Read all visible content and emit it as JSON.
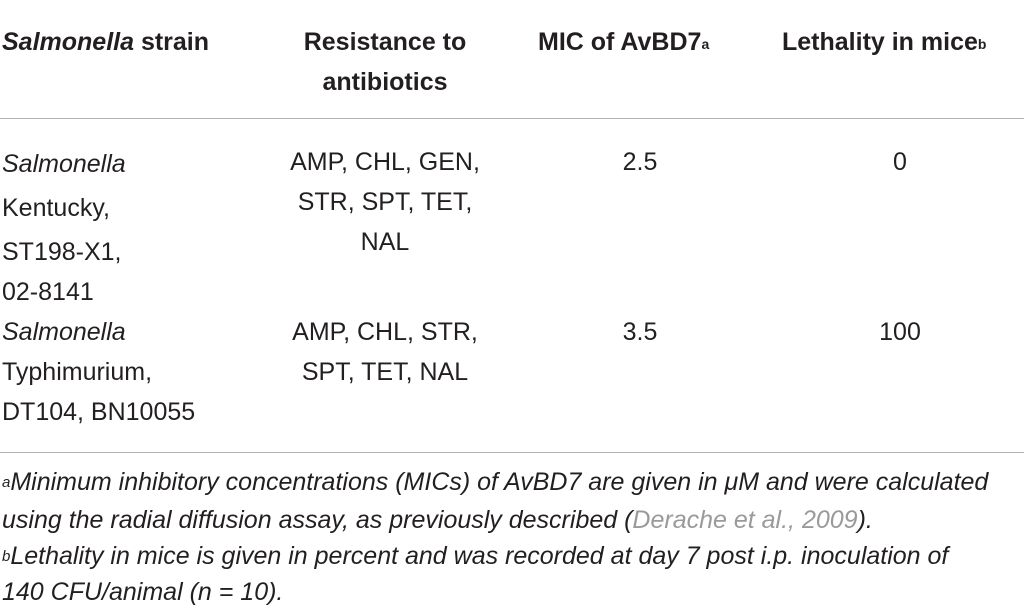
{
  "table": {
    "headers": {
      "strain_italic": "Salmonella",
      "strain_rest": " strain",
      "resistance_line1": "Resistance to",
      "resistance_line2": "antibiotics",
      "mic": "MIC of AvBD7",
      "mic_sup": "a",
      "lethality": "Lethality in mice",
      "lethality_sup": "b"
    },
    "rows": [
      {
        "strain_italic": "Salmonella",
        "strain_lines": [
          "Kentucky,",
          "ST198-X1,",
          "02-8141"
        ],
        "resistance_lines": [
          "AMP, CHL, GEN,",
          "STR, SPT, TET,",
          "NAL"
        ],
        "mic": "2.5",
        "lethality": "0"
      },
      {
        "strain_italic": "Salmonella",
        "strain_lines": [
          "Typhimurium,",
          "DT104, BN10055"
        ],
        "resistance_lines": [
          "AMP, CHL, STR,",
          "SPT, TET, NAL"
        ],
        "mic": "3.5",
        "lethality": "100"
      }
    ]
  },
  "footnotes": {
    "a_mark": "a",
    "a_line1": "Minimum inhibitory concentrations (MICs) of AvBD7 are given in μM and were calculated",
    "a_line2_pre": "using the radial diffusion assay, as previously described (",
    "a_ref": "Derache et al., 2009",
    "a_line2_post": ").",
    "b_mark": "b",
    "b_line1": "Lethality in mice is given in percent and was recorded at day 7 post i.p. inoculation of",
    "b_line2": "140 CFU/animal (n = 10)."
  }
}
